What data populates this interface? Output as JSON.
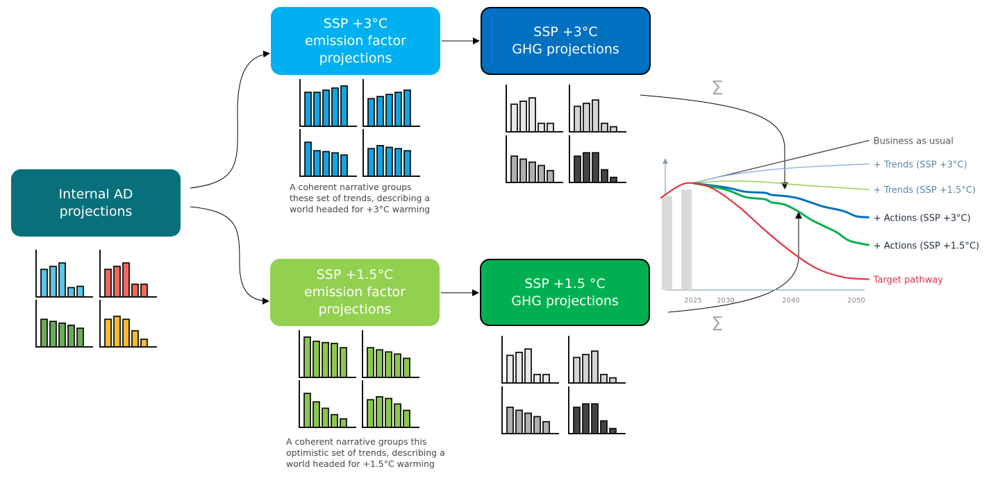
{
  "boxes": {
    "ad": {
      "label": "Internal AD\nprojections",
      "color": "#08707a"
    },
    "ef3": {
      "label": "SSP +3°C\nemission factor\nprojections",
      "color": "#00b0f0"
    },
    "ghg3": {
      "label": "SSP +3°C\nGHG projections",
      "color": "#0070c0"
    },
    "ef15": {
      "label": "SSP +1.5°C\nemission factor\nprojections",
      "color": "#92d050"
    },
    "ghg15": {
      "label": "SSP +1.5 °C\nGHG projections",
      "color": "#00b050"
    }
  },
  "captions": {
    "top": "A coherent narrative groups\nthese set of trends, describing a\nworld headed for +3°C warming",
    "bottom": "A coherent narrative groups this\noptimistic set of trends, describing a\nworld headed for +1.5°C warming"
  },
  "sum_symbol": "Σ",
  "mini_charts": {
    "ad": [
      {
        "color": "#5bc4ea",
        "values": [
          0.65,
          0.72,
          0.8,
          0.22,
          0.25
        ]
      },
      {
        "color": "#f2665e",
        "values": [
          0.65,
          0.72,
          0.8,
          0.3,
          0.3
        ]
      },
      {
        "color": "#6aac5a",
        "values": [
          0.65,
          0.6,
          0.56,
          0.51,
          0.44
        ]
      },
      {
        "color": "#f9b935",
        "values": [
          0.65,
          0.72,
          0.65,
          0.38,
          0.18
        ]
      }
    ],
    "ef3": [
      {
        "color": "#12a4e4",
        "values": [
          0.8,
          0.8,
          0.85,
          0.9,
          0.95
        ]
      },
      {
        "color": "#12a4e4",
        "values": [
          0.65,
          0.7,
          0.75,
          0.8,
          0.85
        ]
      },
      {
        "color": "#12a4e4",
        "values": [
          0.8,
          0.6,
          0.58,
          0.55,
          0.5
        ]
      },
      {
        "color": "#12a4e4",
        "values": [
          0.65,
          0.72,
          0.68,
          0.65,
          0.6
        ]
      }
    ],
    "ef15": [
      {
        "color": "#8cc84b",
        "values": [
          0.95,
          0.85,
          0.82,
          0.8,
          0.7
        ]
      },
      {
        "color": "#8cc84b",
        "values": [
          0.7,
          0.65,
          0.6,
          0.55,
          0.45
        ]
      },
      {
        "color": "#8cc84b",
        "values": [
          0.8,
          0.6,
          0.45,
          0.3,
          0.2
        ]
      },
      {
        "color": "#8cc84b",
        "values": [
          0.65,
          0.72,
          0.68,
          0.55,
          0.4
        ]
      }
    ],
    "ghg3": [
      {
        "color": "#e8e8e8",
        "values": [
          0.65,
          0.72,
          0.8,
          0.2,
          0.2
        ]
      },
      {
        "color": "#d4d4d4",
        "values": [
          0.6,
          0.67,
          0.75,
          0.2,
          0.12
        ]
      },
      {
        "color": "#b0b0b0",
        "values": [
          0.62,
          0.55,
          0.48,
          0.4,
          0.28
        ]
      },
      {
        "color": "#444444",
        "values": [
          0.62,
          0.7,
          0.7,
          0.3,
          0.12
        ]
      }
    ],
    "ghg15": [
      {
        "color": "#e8e8e8",
        "values": [
          0.65,
          0.72,
          0.8,
          0.2,
          0.2
        ]
      },
      {
        "color": "#d4d4d4",
        "values": [
          0.6,
          0.67,
          0.75,
          0.2,
          0.12
        ]
      },
      {
        "color": "#b0b0b0",
        "values": [
          0.62,
          0.55,
          0.48,
          0.4,
          0.28
        ]
      },
      {
        "color": "#444444",
        "values": [
          0.62,
          0.7,
          0.7,
          0.3,
          0.12
        ]
      }
    ]
  },
  "chart_data": {
    "type": "line",
    "title": "",
    "xlabel": "",
    "ylabel": "",
    "x_ticks": [
      2025,
      2030,
      2040,
      2050
    ],
    "historic_bars": [
      {
        "x": 2021,
        "value": 88
      },
      {
        "x": 2024,
        "value": 94
      }
    ],
    "series": [
      {
        "name": "Business as usual",
        "color": "#595959",
        "label_color": "#595959",
        "width": 1.5,
        "points": [
          [
            2025,
            100
          ],
          [
            2052,
            140
          ]
        ]
      },
      {
        "name": "+ Trends (SSP +3°C)",
        "color": "#8fb4ee",
        "label_color": "#5b86a8",
        "width": 1.5,
        "points": [
          [
            2025,
            100
          ],
          [
            2030,
            107
          ],
          [
            2036,
            112
          ],
          [
            2042,
            115
          ],
          [
            2052,
            118
          ]
        ]
      },
      {
        "name": "+ Trends (SSP +1.5°C)",
        "color": "#92d050",
        "label_color": "#5b86a8",
        "width": 1.5,
        "points": [
          [
            2025,
            100
          ],
          [
            2030,
            102
          ],
          [
            2036,
            101
          ],
          [
            2042,
            98
          ],
          [
            2052,
            94
          ]
        ]
      },
      {
        "name": "+ Actions (SSP +3°C)",
        "color": "#0070c0",
        "label_color": "#1f2d3d",
        "width": 3,
        "points": [
          [
            2025,
            100
          ],
          [
            2030,
            96
          ],
          [
            2033,
            92
          ],
          [
            2036,
            91
          ],
          [
            2037,
            89
          ],
          [
            2039,
            88
          ],
          [
            2041,
            86
          ],
          [
            2043,
            82
          ],
          [
            2045,
            78
          ],
          [
            2048,
            74
          ],
          [
            2050,
            69
          ],
          [
            2052,
            68
          ]
        ]
      },
      {
        "name": "+ Actions (SSP +1.5°C)",
        "color": "#00b050",
        "label_color": "#1f2d3d",
        "width": 3,
        "points": [
          [
            2025,
            100
          ],
          [
            2030,
            94
          ],
          [
            2033,
            87
          ],
          [
            2036,
            85
          ],
          [
            2037,
            82
          ],
          [
            2039,
            80
          ],
          [
            2041,
            74
          ],
          [
            2043,
            66
          ],
          [
            2045,
            60
          ],
          [
            2047,
            54
          ],
          [
            2049,
            46
          ],
          [
            2052,
            42
          ]
        ]
      },
      {
        "name": "Target pathway",
        "color": "#e0313f",
        "label_color": "#e0313f",
        "width": 2.2,
        "points": [
          [
            2020,
            86
          ],
          [
            2023,
            98
          ],
          [
            2025,
            100
          ],
          [
            2028,
            95
          ],
          [
            2032,
            78
          ],
          [
            2036,
            56
          ],
          [
            2040,
            36
          ],
          [
            2044,
            20
          ],
          [
            2048,
            12
          ],
          [
            2052,
            10
          ]
        ]
      }
    ]
  }
}
